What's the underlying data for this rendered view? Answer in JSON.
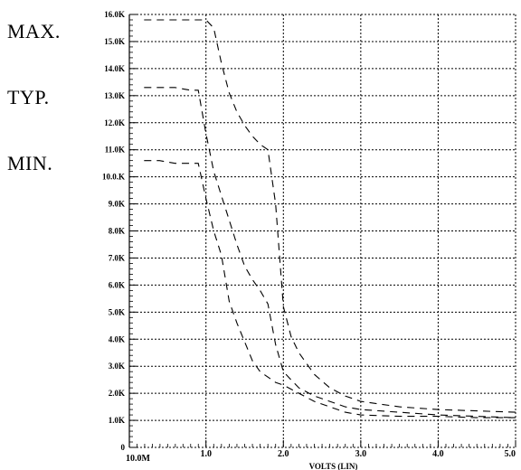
{
  "side_labels": {
    "max": "MAX.",
    "typ": "TYP.",
    "min": "MIN."
  },
  "chart_data": {
    "type": "line",
    "title": "",
    "xlabel": "VOLTS (LIN)",
    "ylabel": "",
    "xlim": [
      0.01,
      5.0
    ],
    "ylim": [
      0,
      16000
    ],
    "grid": true,
    "x_ticks": [
      {
        "value": 0.01,
        "label": "10.0M"
      },
      {
        "value": 1.0,
        "label": "1.0"
      },
      {
        "value": 2.0,
        "label": "2.0"
      },
      {
        "value": 3.0,
        "label": "3.0"
      },
      {
        "value": 4.0,
        "label": "4.0"
      },
      {
        "value": 5.0,
        "label": "5.0"
      }
    ],
    "y_ticks": [
      {
        "value": 0,
        "label": "0"
      },
      {
        "value": 1000,
        "label": "1.0K"
      },
      {
        "value": 2000,
        "label": "2.0K"
      },
      {
        "value": 3000,
        "label": "3.0K"
      },
      {
        "value": 4000,
        "label": "4.0K"
      },
      {
        "value": 5000,
        "label": "5.0K"
      },
      {
        "value": 6000,
        "label": "6.0K"
      },
      {
        "value": 7000,
        "label": "7.0K"
      },
      {
        "value": 8000,
        "label": "8.0K"
      },
      {
        "value": 9000,
        "label": "9.0K"
      },
      {
        "value": 10000,
        "label": "10.0.K"
      },
      {
        "value": 11000,
        "label": "11.0K"
      },
      {
        "value": 12000,
        "label": "12.0K"
      },
      {
        "value": 13000,
        "label": "13.0K"
      },
      {
        "value": 14000,
        "label": "14.0K"
      },
      {
        "value": 15000,
        "label": "15.0K"
      },
      {
        "value": 16000,
        "label": "16.0K"
      }
    ],
    "series": [
      {
        "x": [
          0.2,
          0.4,
          0.6,
          0.8,
          1.0,
          1.1,
          1.2,
          1.3,
          1.4,
          1.5,
          1.6,
          1.7,
          1.8,
          1.9,
          2.0,
          2.1,
          2.2,
          2.4,
          2.6,
          2.8,
          3.0,
          3.5,
          4.0,
          4.5,
          5.0
        ],
        "y": [
          15800,
          15800,
          15800,
          15800,
          15800,
          15500,
          14200,
          13100,
          12400,
          11900,
          11500,
          11200,
          11000,
          9000,
          5200,
          4100,
          3500,
          2700,
          2200,
          1900,
          1700,
          1500,
          1400,
          1350,
          1300
        ]
      },
      {
        "x": [
          0.2,
          0.4,
          0.6,
          0.8,
          0.9,
          1.0,
          1.1,
          1.2,
          1.3,
          1.4,
          1.5,
          1.6,
          1.7,
          1.8,
          1.9,
          2.0,
          2.1,
          2.2,
          2.4,
          2.6,
          2.8,
          3.0,
          3.5,
          4.0,
          4.5,
          5.0
        ],
        "y": [
          13300,
          13300,
          13300,
          13200,
          13200,
          11600,
          10200,
          9300,
          8400,
          7500,
          6700,
          6200,
          5800,
          5300,
          3800,
          2800,
          2500,
          2200,
          1900,
          1700,
          1500,
          1400,
          1300,
          1200,
          1150,
          1100
        ]
      },
      {
        "x": [
          0.2,
          0.4,
          0.6,
          0.8,
          0.9,
          1.0,
          1.1,
          1.2,
          1.3,
          1.4,
          1.5,
          1.6,
          1.7,
          1.8,
          1.9,
          2.0,
          2.2,
          2.4,
          2.6,
          2.8,
          3.0,
          3.5,
          4.0,
          4.5,
          5.0
        ],
        "y": [
          10600,
          10600,
          10500,
          10500,
          10500,
          9200,
          8000,
          7100,
          5400,
          4600,
          3900,
          3200,
          2800,
          2600,
          2400,
          2300,
          2000,
          1700,
          1500,
          1300,
          1200,
          1150,
          1150,
          1100,
          1100
        ]
      }
    ]
  }
}
